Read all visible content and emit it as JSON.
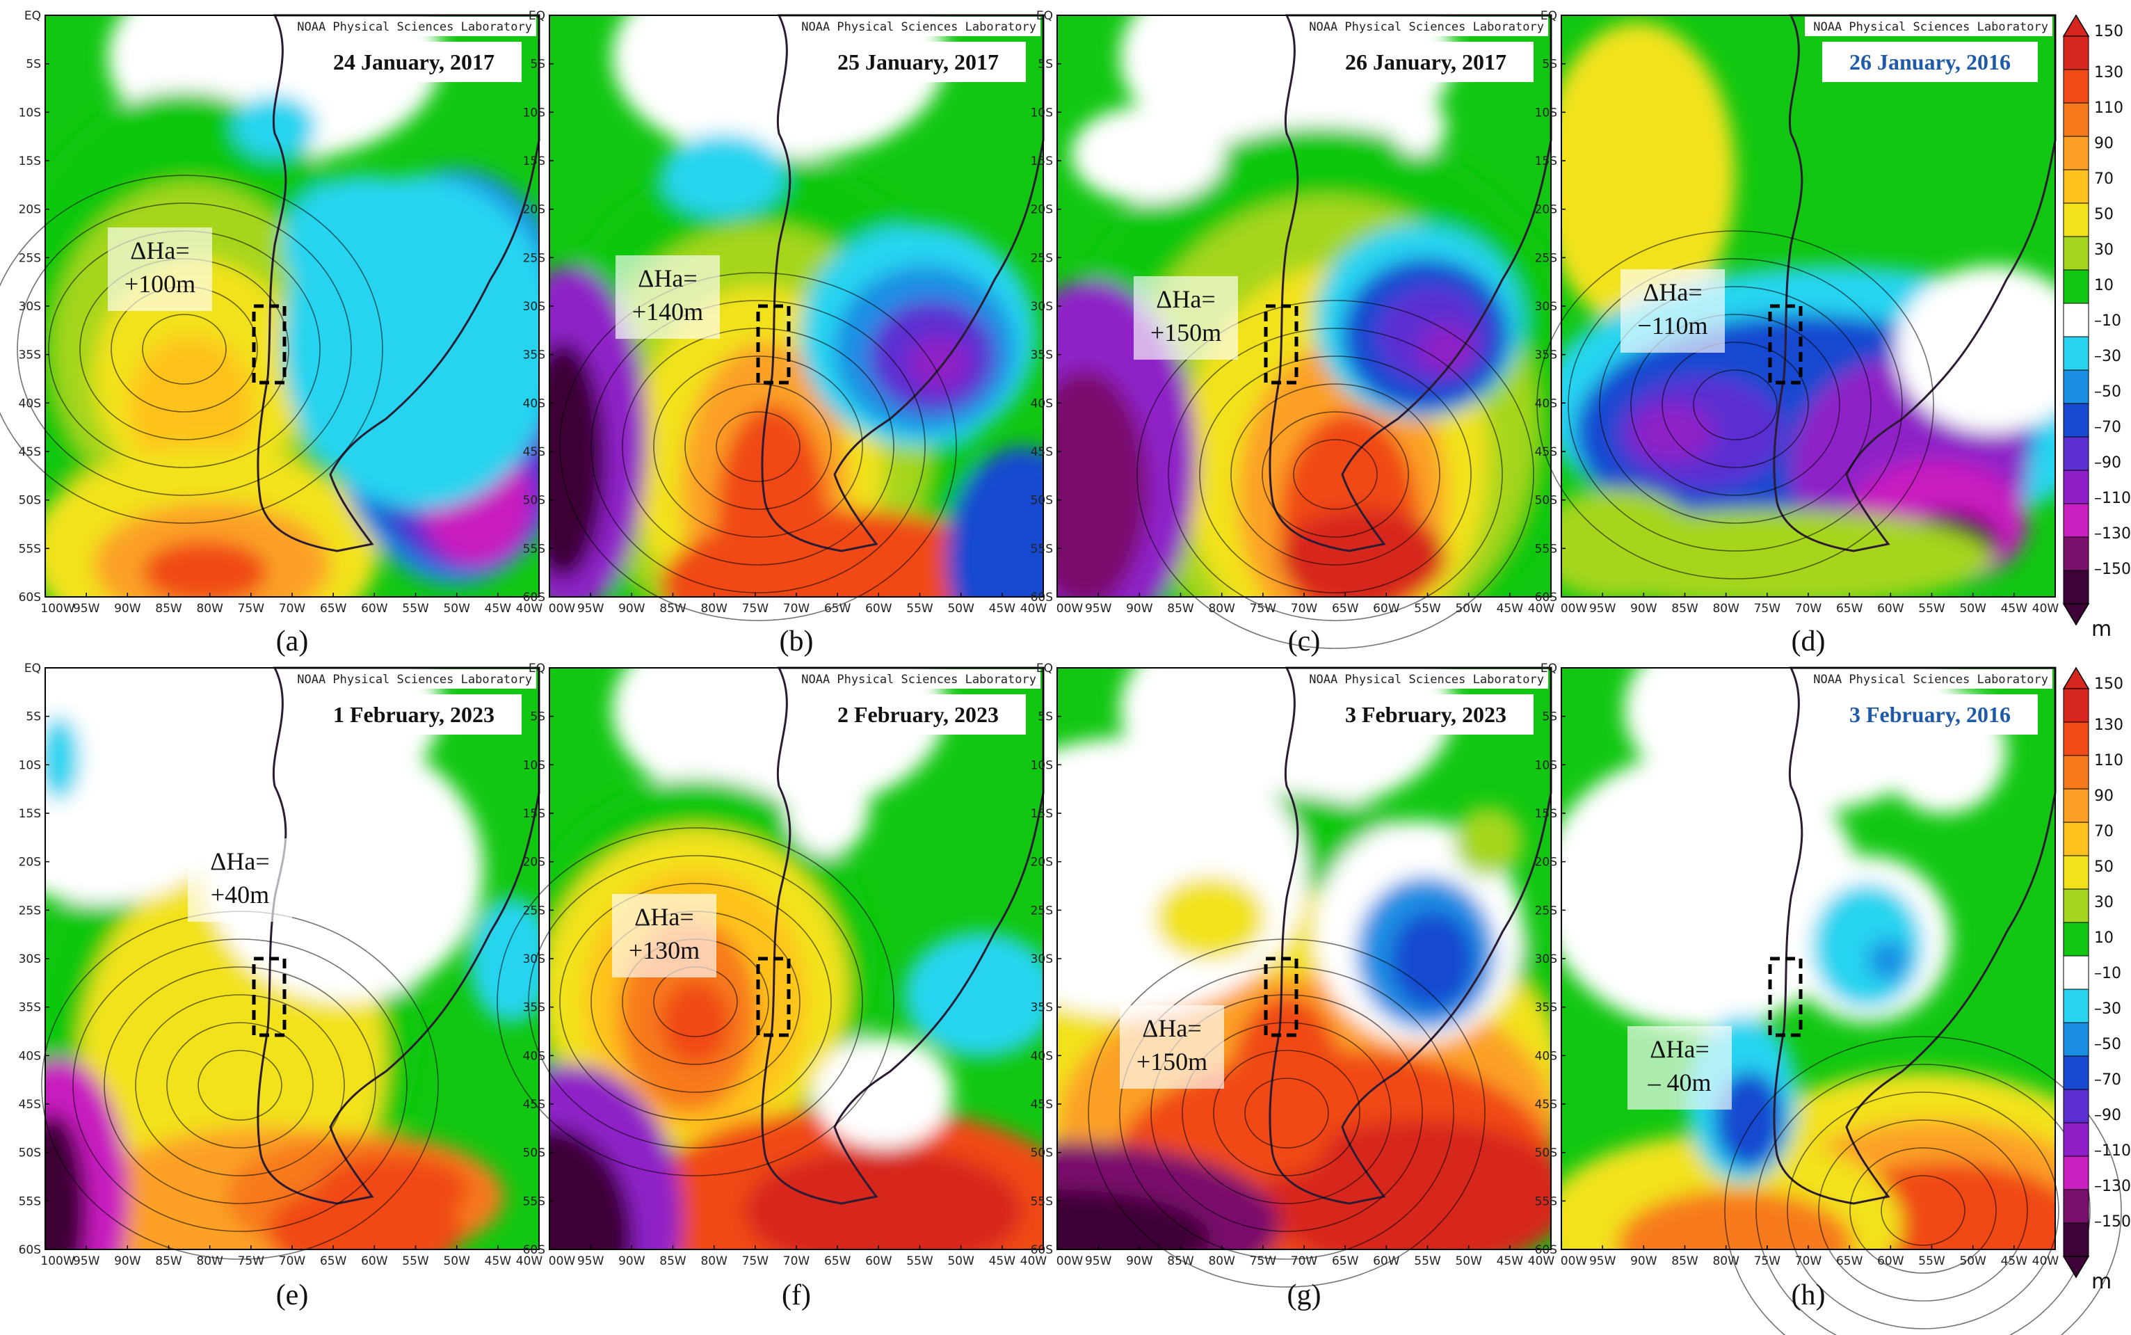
{
  "colors": {
    "blue_date": "#1f5aa8",
    "black_date": "#111111"
  },
  "lat_labels": [
    "EQ",
    "5S",
    "10S",
    "15S",
    "20S",
    "25S",
    "30S",
    "35S",
    "40S",
    "45S",
    "50S",
    "55S",
    "60S"
  ],
  "lon_labels_first": [
    "100W",
    "95W",
    "90W",
    "85W",
    "80W",
    "75W",
    "70W",
    "65W",
    "60W",
    "55W",
    "50W",
    "45W",
    "40W"
  ],
  "lon_labels_other": [
    "00W",
    "95W",
    "90W",
    "85W",
    "80W",
    "75W",
    "70W",
    "65W",
    "60W",
    "55W",
    "50W",
    "45W",
    "40W"
  ],
  "source_label": "NOAA Physical Sciences Laboratory",
  "colorbar": {
    "unit": "m",
    "ticks": [
      "150",
      "130",
      "110",
      "90",
      "70",
      "50",
      "30",
      "10",
      "–10",
      "–30",
      "–50",
      "–70",
      "–90",
      "–110",
      "–130",
      "–150"
    ],
    "colors": [
      "#d7261e",
      "#f04a16",
      "#f77a1c",
      "#fca126",
      "#ffc21e",
      "#f2e21c",
      "#a5d61f",
      "#11c711",
      "#ffffff",
      "#28d4f0",
      "#1a8ee3",
      "#1949d0",
      "#5b2fd1",
      "#8f20c7",
      "#c81fbf",
      "#7a0f6c",
      "#3d0236"
    ]
  },
  "panels": [
    {
      "caption": "(a)",
      "date": "24 January, 2017",
      "date_blue": false,
      "dha": [
        "ΔHa=",
        "+100m"
      ]
    },
    {
      "caption": "(b)",
      "date": "25 January, 2017",
      "date_blue": false,
      "dha": [
        "ΔHa=",
        "+140m"
      ]
    },
    {
      "caption": "(c)",
      "date": "26 January, 2017",
      "date_blue": false,
      "dha": [
        "ΔHa=",
        "+150m"
      ]
    },
    {
      "caption": "(d)",
      "date": "26 January, 2016",
      "date_blue": true,
      "dha": [
        "ΔHa=",
        "−110m"
      ]
    },
    {
      "caption": "(e)",
      "date": "1 February, 2023",
      "date_blue": false,
      "dha": [
        "ΔHa=",
        "+40m"
      ]
    },
    {
      "caption": "(f)",
      "date": "2 February, 2023",
      "date_blue": false,
      "dha": [
        "ΔHa=",
        "+130m"
      ]
    },
    {
      "caption": "(g)",
      "date": "3 February, 2023",
      "date_blue": false,
      "dha": [
        "ΔHa=",
        "+150m"
      ]
    },
    {
      "caption": "(h)",
      "date": "3 February, 2016",
      "date_blue": true,
      "dha": [
        "ΔHa=",
        "– 40m"
      ]
    }
  ]
}
